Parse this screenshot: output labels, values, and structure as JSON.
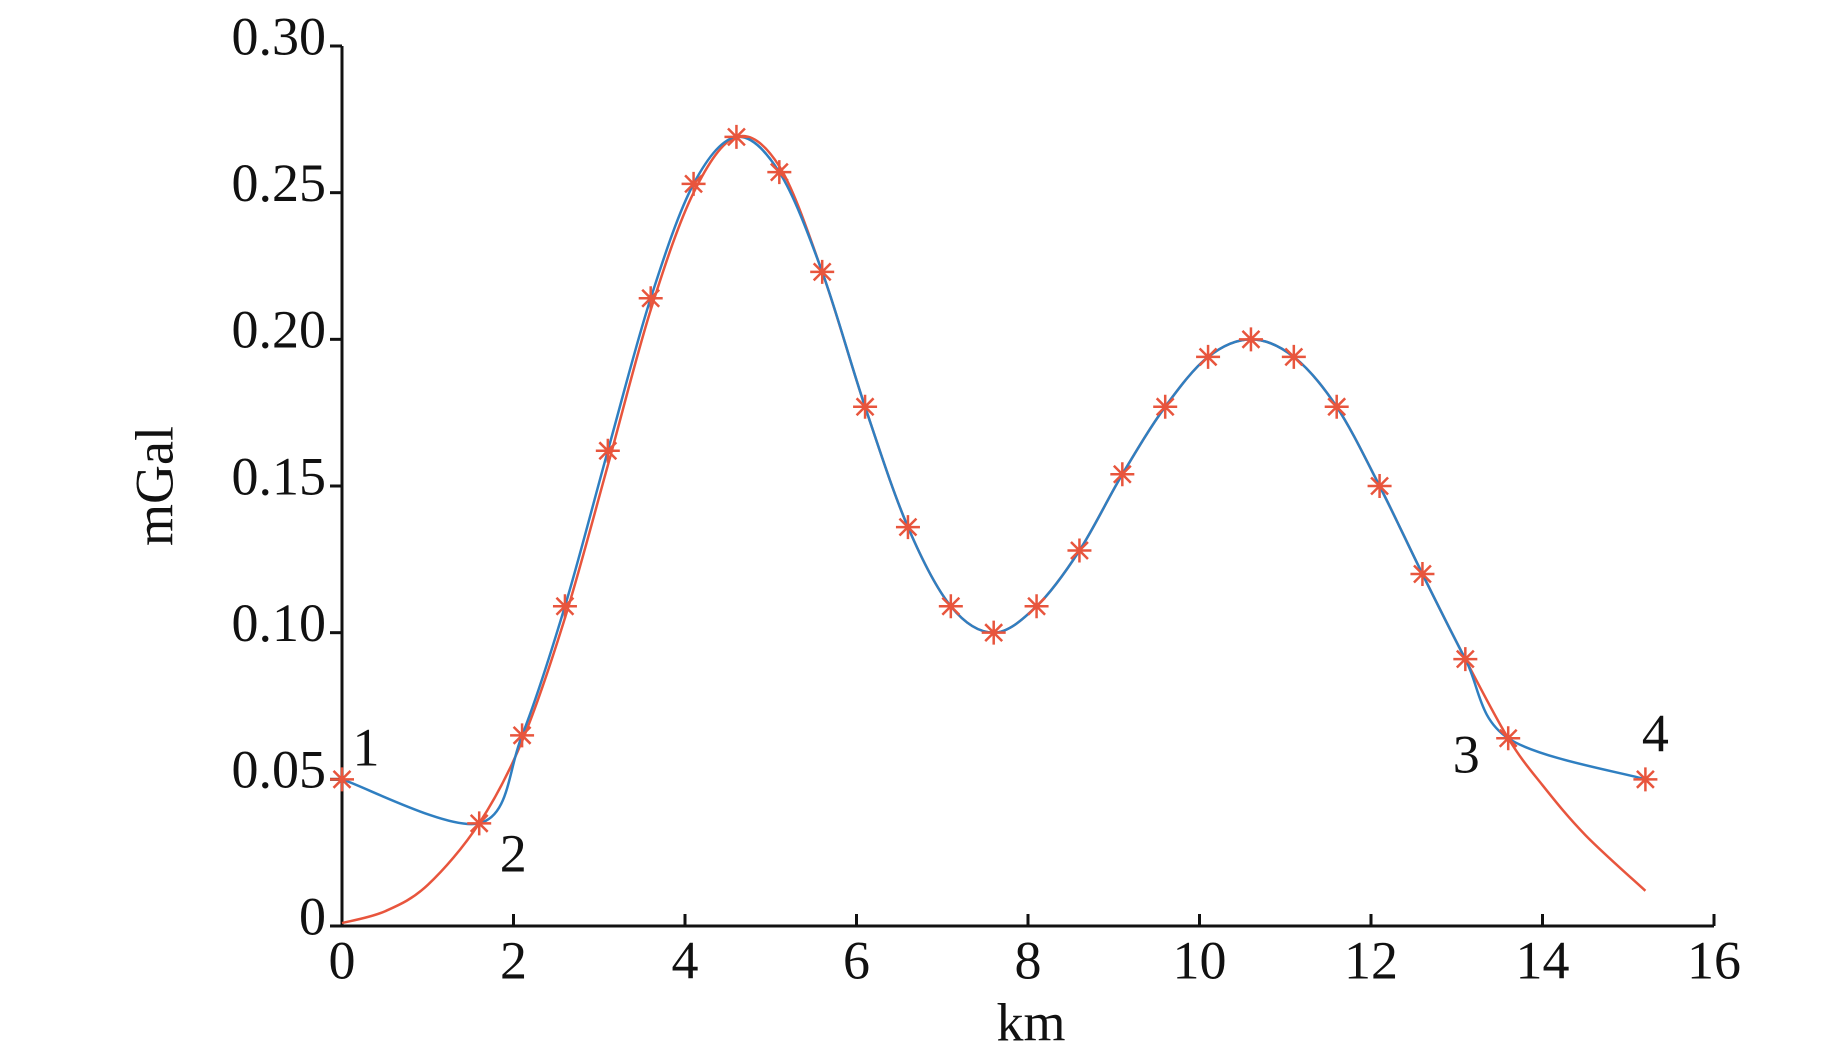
{
  "chart_data": {
    "type": "line",
    "xlabel": "km",
    "ylabel": "mGal",
    "xlim": [
      0,
      16
    ],
    "xticks": [
      0,
      2,
      4,
      6,
      8,
      10,
      12,
      14,
      16
    ],
    "ylim": [
      0,
      0.3
    ],
    "yticks": [
      0,
      0.05,
      {
        "value": 0.1,
        "label": "0.10"
      },
      0.15,
      {
        "value": 0.2,
        "label": "0.20"
      },
      0.25,
      {
        "value": 0.3,
        "label": "0.30"
      }
    ],
    "series": [
      {
        "color": "#e8553d",
        "x": [
          0,
          0.5,
          1,
          1.6,
          2.1,
          2.6,
          3.1,
          3.6,
          4.1,
          4.6,
          5.1,
          5.6,
          6.1,
          6.6,
          7.1,
          7.6,
          8.1,
          8.6,
          9.1,
          9.6,
          10.1,
          10.6,
          11.1,
          11.6,
          12.1,
          12.6,
          13.1,
          13.6,
          14,
          14.5,
          15.2
        ],
        "values": [
          0.001,
          0.005,
          0.014,
          0.035,
          0.063,
          0.105,
          0.157,
          0.21,
          0.25,
          0.269,
          0.259,
          0.223,
          0.177,
          0.136,
          0.109,
          0.1,
          0.109,
          0.128,
          0.154,
          0.177,
          0.194,
          0.2,
          0.194,
          0.177,
          0.15,
          0.12,
          0.091,
          0.064,
          0.048,
          0.031,
          0.012
        ]
      },
      {
        "color": "#2f7fc1",
        "marker_color": "#e8553d",
        "x": [
          0,
          1.6,
          2.1,
          2.6,
          3.1,
          3.6,
          4.1,
          4.6,
          5.1,
          5.6,
          6.1,
          6.6,
          7.1,
          7.6,
          8.1,
          8.6,
          9.1,
          9.6,
          10.1,
          10.6,
          11.1,
          11.6,
          12.1,
          12.6,
          13.1,
          13.6,
          15.2
        ],
        "values": [
          0.05,
          0.035,
          0.065,
          0.109,
          0.162,
          0.214,
          0.253,
          0.269,
          0.257,
          0.223,
          0.177,
          0.136,
          0.109,
          0.1,
          0.109,
          0.128,
          0.154,
          0.177,
          0.194,
          0.2,
          0.194,
          0.177,
          0.15,
          0.12,
          0.091,
          0.064,
          0.05
        ]
      }
    ],
    "annotations": [
      "1",
      "2",
      "3",
      "4"
    ]
  }
}
